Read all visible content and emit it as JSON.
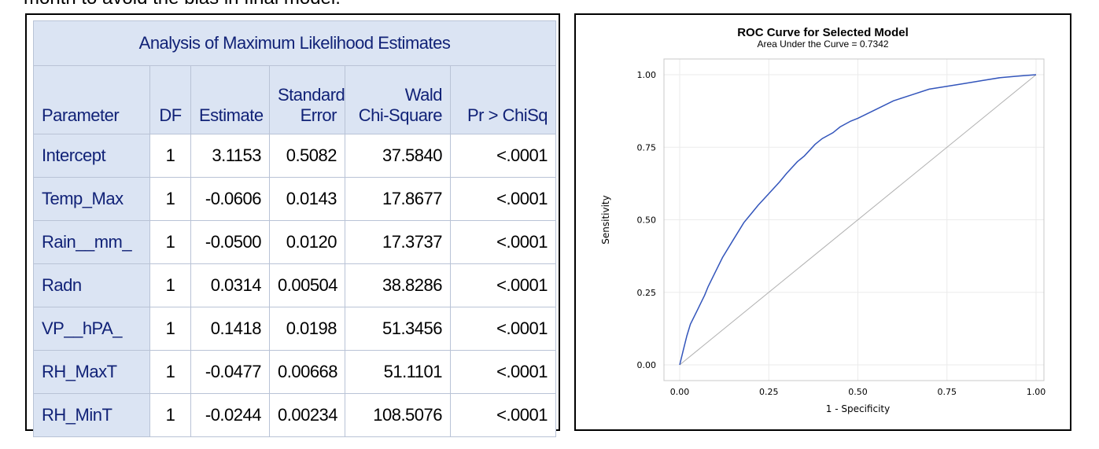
{
  "caption_fragment": "month to avoid the bias in final model.",
  "table": {
    "title": "Analysis of Maximum Likelihood Estimates",
    "headers": {
      "parameter": "Parameter",
      "df": "DF",
      "estimate": "Estimate",
      "stderr_1": "Standard",
      "stderr_2": "Error",
      "wald_1": "Wald",
      "wald_2": "Chi-Square",
      "p": "Pr > ChiSq"
    },
    "rows": [
      {
        "param": "Intercept",
        "df": "1",
        "estimate": "3.1153",
        "stderr": "0.5082",
        "wald": "37.5840",
        "p": "<.0001"
      },
      {
        "param": "Temp_Max",
        "df": "1",
        "estimate": "-0.0606",
        "stderr": "0.0143",
        "wald": "17.8677",
        "p": "<.0001"
      },
      {
        "param": "Rain__mm_",
        "df": "1",
        "estimate": "-0.0500",
        "stderr": "0.0120",
        "wald": "17.3737",
        "p": "<.0001"
      },
      {
        "param": "Radn",
        "df": "1",
        "estimate": "0.0314",
        "stderr": "0.00504",
        "wald": "38.8286",
        "p": "<.0001"
      },
      {
        "param": "VP__hPA_",
        "df": "1",
        "estimate": "0.1418",
        "stderr": "0.0198",
        "wald": "51.3456",
        "p": "<.0001"
      },
      {
        "param": "RH_MaxT",
        "df": "1",
        "estimate": "-0.0477",
        "stderr": "0.00668",
        "wald": "51.1101",
        "p": "<.0001"
      },
      {
        "param": "RH_MinT",
        "df": "1",
        "estimate": "-0.0244",
        "stderr": "0.00234",
        "wald": "108.5076",
        "p": "<.0001"
      }
    ]
  },
  "chart_data": {
    "type": "line",
    "title": "ROC Curve for Selected Model",
    "subtitle": "Area Under the Curve = 0.7342",
    "xlabel": "1 - Specificity",
    "ylabel": "Sensitivity",
    "xlim": [
      0,
      1
    ],
    "ylim": [
      0,
      1
    ],
    "xticks": [
      "0.00",
      "0.25",
      "0.50",
      "0.75",
      "1.00"
    ],
    "yticks": [
      "0.00",
      "0.25",
      "0.50",
      "0.75",
      "1.00"
    ],
    "grid": true,
    "series": [
      {
        "color": "#3355bb",
        "x": [
          0.0,
          0.01,
          0.02,
          0.03,
          0.05,
          0.07,
          0.08,
          0.1,
          0.12,
          0.15,
          0.18,
          0.2,
          0.22,
          0.25,
          0.28,
          0.3,
          0.33,
          0.35,
          0.38,
          0.4,
          0.43,
          0.45,
          0.48,
          0.5,
          0.55,
          0.6,
          0.65,
          0.7,
          0.75,
          0.8,
          0.85,
          0.9,
          0.95,
          1.0
        ],
        "y": [
          0.0,
          0.05,
          0.1,
          0.14,
          0.19,
          0.24,
          0.27,
          0.32,
          0.37,
          0.43,
          0.49,
          0.52,
          0.55,
          0.59,
          0.63,
          0.66,
          0.7,
          0.72,
          0.76,
          0.78,
          0.8,
          0.82,
          0.84,
          0.85,
          0.88,
          0.91,
          0.93,
          0.95,
          0.96,
          0.97,
          0.98,
          0.99,
          0.995,
          1.0
        ]
      },
      {
        "color": "#b0b0b0",
        "x": [
          0,
          1
        ],
        "y": [
          0,
          1
        ]
      }
    ]
  }
}
